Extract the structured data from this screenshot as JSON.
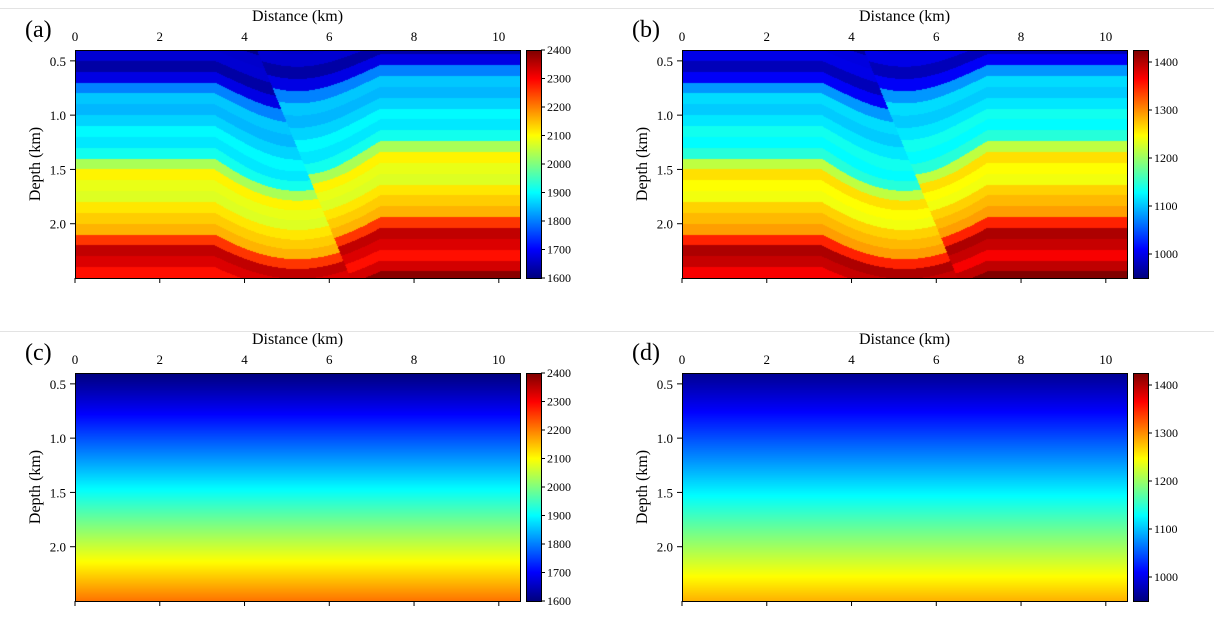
{
  "chart_data": [
    {
      "type": "heatmap",
      "panel_label": "(a)",
      "xlabel": "Distance (km)",
      "ylabel": "Depth (km)",
      "xlim": [
        0,
        10.5
      ],
      "ylim": [
        0.4,
        2.5
      ],
      "xticks": [
        "0",
        "2",
        "4",
        "6",
        "8",
        "10"
      ],
      "yticks": [
        "0.5",
        "1.0",
        "1.5",
        "2.0"
      ],
      "model": "layered-with-fault",
      "colorbar": {
        "range": [
          1600,
          2400
        ],
        "ticks": [
          "1600",
          "1700",
          "1800",
          "1900",
          "2000",
          "2100",
          "2200",
          "2300",
          "2400"
        ]
      }
    },
    {
      "type": "heatmap",
      "panel_label": "(b)",
      "xlabel": "Distance (km)",
      "ylabel": "Depth (km)",
      "xlim": [
        0,
        10.5
      ],
      "ylim": [
        0.4,
        2.5
      ],
      "xticks": [
        "0",
        "2",
        "4",
        "6",
        "8",
        "10"
      ],
      "yticks": [
        "0.5",
        "1.0",
        "1.5",
        "2.0"
      ],
      "model": "layered-with-fault",
      "colorbar": {
        "range": [
          950,
          1425
        ],
        "ticks": [
          "1000",
          "1100",
          "1200",
          "1300",
          "1400"
        ]
      }
    },
    {
      "type": "heatmap",
      "panel_label": "(c)",
      "xlabel": "Distance (km)",
      "ylabel": "Depth (km)",
      "xlim": [
        0,
        10.5
      ],
      "ylim": [
        0.4,
        2.5
      ],
      "xticks": [
        "0",
        "2",
        "4",
        "6",
        "8",
        "10"
      ],
      "yticks": [
        "0.5",
        "1.0",
        "1.5",
        "2.0"
      ],
      "model": "smooth-gradient",
      "colorbar": {
        "range": [
          1600,
          2400
        ],
        "ticks": [
          "1600",
          "1700",
          "1800",
          "1900",
          "2000",
          "2100",
          "2200",
          "2300",
          "2400"
        ]
      }
    },
    {
      "type": "heatmap",
      "panel_label": "(d)",
      "xlabel": "Distance (km)",
      "ylabel": "Depth (km)",
      "xlim": [
        0,
        10.5
      ],
      "ylim": [
        0.4,
        2.5
      ],
      "xticks": [
        "0",
        "2",
        "4",
        "6",
        "8",
        "10"
      ],
      "yticks": [
        "0.5",
        "1.0",
        "1.5",
        "2.0"
      ],
      "model": "smooth-gradient",
      "colorbar": {
        "range": [
          950,
          1425
        ],
        "ticks": [
          "1000",
          "1100",
          "1200",
          "1300",
          "1400"
        ]
      }
    }
  ],
  "colormap": "jet",
  "colors": {
    "divider": "#e3e3e3",
    "axes": "#000000"
  }
}
